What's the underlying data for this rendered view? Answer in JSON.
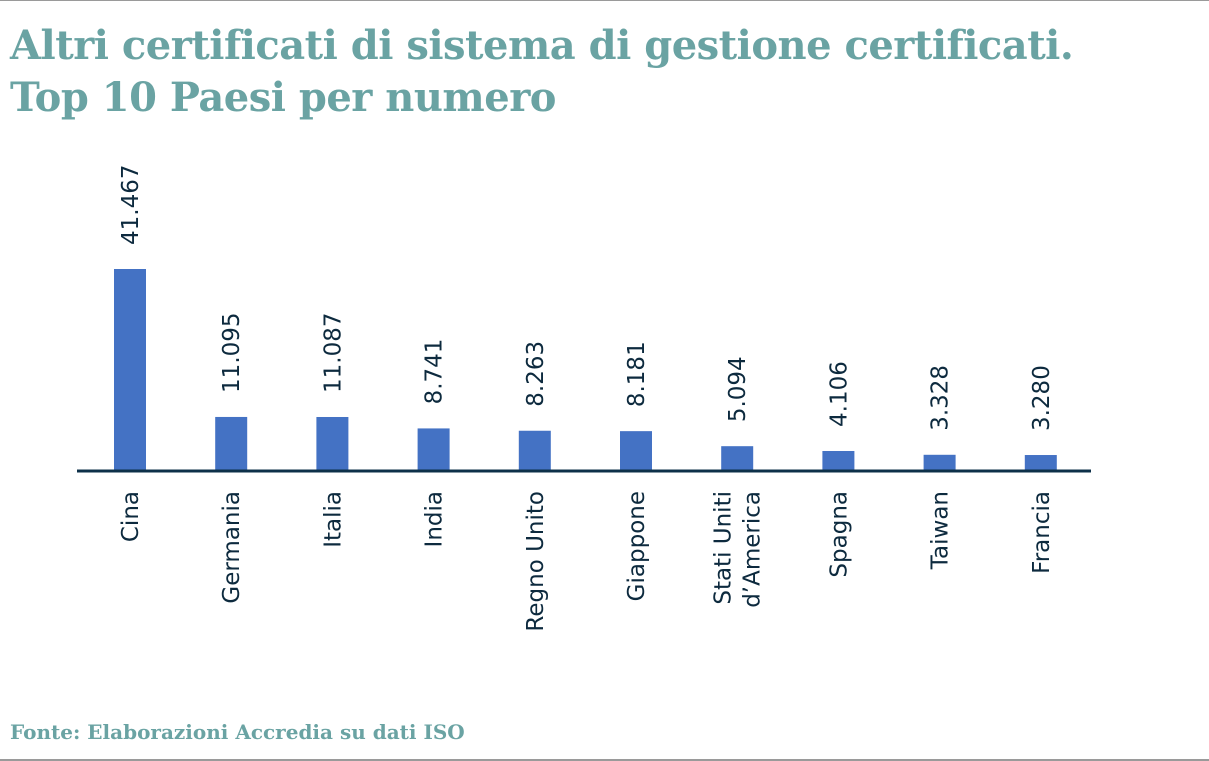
{
  "title": {
    "line1": "Altri certificati di sistema di gestione certificati.",
    "line2": "Top 10 Paesi per numero"
  },
  "source": "Fonte: Elaborazioni Accredia su dati ISO",
  "colors": {
    "title": "#6aa3a3",
    "bar": "#4472c4",
    "axis": "#0d3049",
    "label": "#0d2a3e"
  },
  "chart_data": {
    "type": "bar",
    "title": "Altri certificati di sistema di gestione certificati. Top 10 Paesi per numero",
    "xlabel": "",
    "ylabel": "",
    "grid": false,
    "legend": "none",
    "ylim": [
      0,
      41467
    ],
    "categories": [
      [
        "Cina"
      ],
      [
        "Germania"
      ],
      [
        "Italia"
      ],
      [
        "India"
      ],
      [
        "Regno Unito"
      ],
      [
        "Giappone"
      ],
      [
        "Stati Uniti",
        "d’America"
      ],
      [
        "Spagna"
      ],
      [
        "Taiwan"
      ],
      [
        "Francia"
      ]
    ],
    "values": [
      41467,
      11095,
      11087,
      8741,
      8263,
      8181,
      5094,
      4106,
      3328,
      3280
    ],
    "value_labels": [
      "41.467",
      "11.095",
      "11.087",
      "8.741",
      "8.263",
      "8.181",
      "5.094",
      "4.106",
      "3.328",
      "3.280"
    ]
  }
}
